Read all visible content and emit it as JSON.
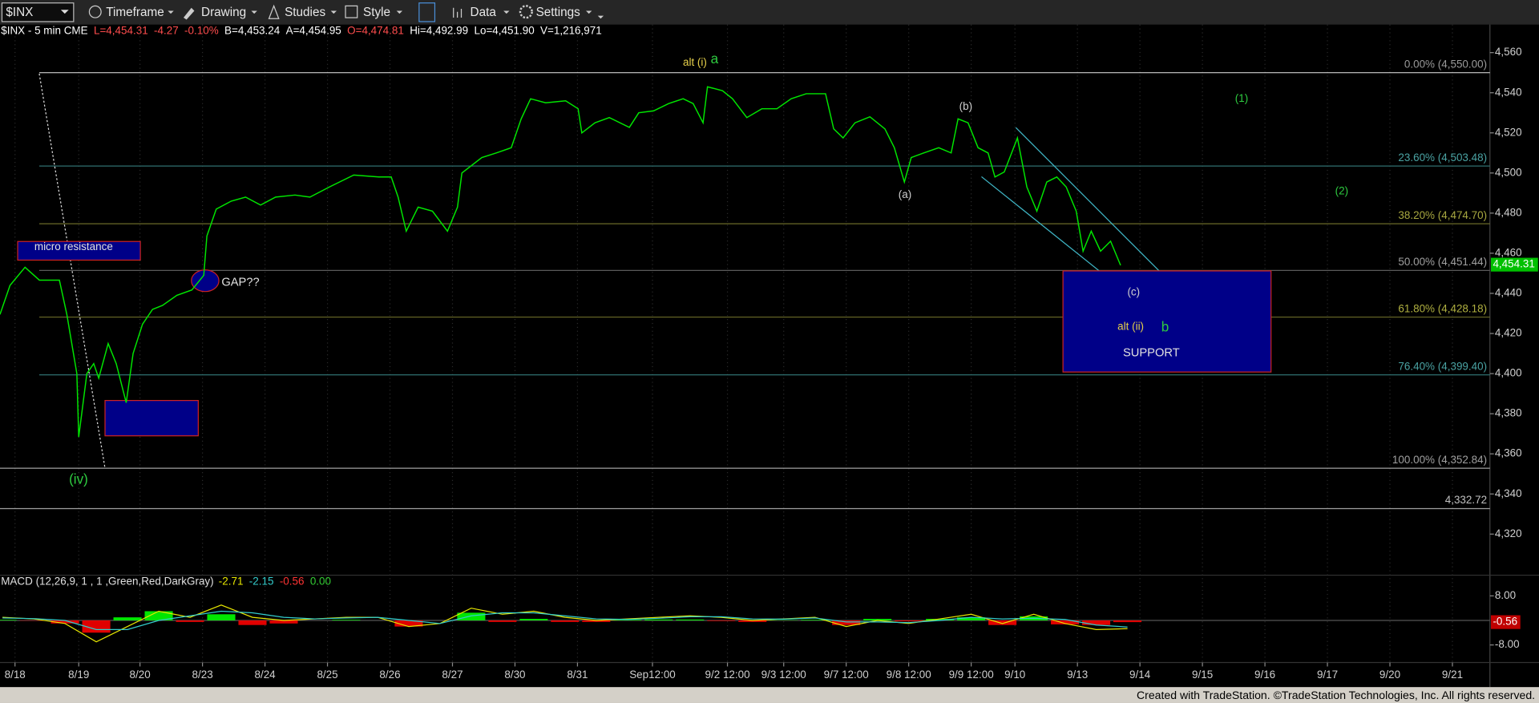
{
  "toolbar": {
    "symbol": "$INX",
    "items": [
      "Timeframe",
      "Drawing",
      "Studies",
      "Style",
      "Data",
      "Settings"
    ]
  },
  "footer": "Created with TradeStation. ©TradeStation Technologies, Inc. All rights reserved.",
  "chart_data": [
    {
      "type": "line",
      "info": [
        {
          "text": "$INX - 5 min  CME",
          "color": "#ffffff"
        },
        {
          "text": "L=4,454.31",
          "color": "#ff4d4d"
        },
        {
          "text": "-4.27",
          "color": "#ff4d4d"
        },
        {
          "text": "-0.10%",
          "color": "#ff4d4d"
        },
        {
          "text": "B=4,453.24",
          "color": "#ffffff"
        },
        {
          "text": "A=4,454.95",
          "color": "#ffffff"
        },
        {
          "text": "O=4,474.81",
          "color": "#ff4d4d"
        },
        {
          "text": "Hi=4,492.99",
          "color": "#ffffff"
        },
        {
          "text": "Lo=4,451.90",
          "color": "#ffffff"
        },
        {
          "text": "V=1,216,971",
          "color": "#ffffff"
        }
      ],
      "x": [
        -0.24,
        -0.08,
        0.16,
        0.39,
        0.71,
        0.83,
        0.99,
        1.02,
        1.15,
        1.26,
        1.34,
        1.49,
        1.62,
        1.78,
        1.89,
        2.04,
        2.2,
        2.36,
        2.59,
        2.83,
        3.02,
        3.07,
        3.22,
        3.46,
        3.69,
        3.93,
        4.17,
        4.48,
        4.72,
        5.03,
        5.42,
        5.82,
        6.02,
        6.13,
        6.26,
        6.45,
        6.68,
        6.92,
        7.08,
        7.15,
        7.47,
        7.7,
        7.94,
        8.1,
        8.25,
        8.49,
        8.81,
        9.01,
        9.07,
        9.28,
        9.51,
        9.83,
        9.98,
        10.22,
        10.46,
        10.69,
        10.85,
        11.01,
        11.08,
        11.32,
        11.48,
        11.71,
        11.95,
        12.19,
        12.42,
        12.66,
        12.97,
        13.1,
        13.25,
        13.44,
        13.68,
        13.92,
        14.07,
        14.23,
        14.34,
        14.54,
        14.78,
        14.98,
        15.09,
        15.25,
        15.41,
        15.57,
        15.68,
        15.83,
        16.04,
        16.19,
        16.35,
        16.51,
        16.67,
        16.82,
        16.98,
        17.09,
        17.22,
        17.37,
        17.53,
        17.69
      ],
      "series": [
        {
          "color": "#00e600",
          "values": [
            4429.5,
            4444,
            4453,
            4446.6,
            4446.6,
            4429.5,
            4400,
            4368.4,
            4400,
            4405,
            4397.7,
            4415,
            4405,
            4385.5,
            4410,
            4424.6,
            4432,
            4434,
            4439,
            4441.7,
            4449,
            4468.6,
            4482,
            4486,
            4488,
            4484,
            4488,
            4489,
            4488,
            4493,
            4499,
            4498,
            4498,
            4488,
            4471,
            4483,
            4481,
            4471,
            4483,
            4500,
            4507.7,
            4510,
            4512.6,
            4527,
            4537,
            4535,
            4536,
            4532,
            4520,
            4525,
            4527.6,
            4522.7,
            4530,
            4531,
            4534.6,
            4537,
            4534.6,
            4525,
            4543,
            4541,
            4537,
            4527.6,
            4532,
            4532,
            4537,
            4539.5,
            4539.5,
            4522,
            4517.5,
            4525,
            4528,
            4522,
            4512.6,
            4495.5,
            4507.7,
            4510,
            4512.6,
            4510,
            4527,
            4525,
            4512.6,
            4510,
            4498,
            4500.5,
            4517.5,
            4493,
            4481,
            4495.5,
            4498,
            4493,
            4481,
            4461,
            4471,
            4461,
            4466,
            4454
          ]
        }
      ],
      "xlim": [
        -0.24,
        23.6
      ],
      "xticks": [
        {
          "value": 0,
          "label": "8/18"
        },
        {
          "value": 1.02,
          "label": "8/19"
        },
        {
          "value": 2,
          "label": "8/20"
        },
        {
          "value": 3,
          "label": "8/23"
        },
        {
          "value": 4,
          "label": "8/24"
        },
        {
          "value": 5,
          "label": "8/25"
        },
        {
          "value": 6,
          "label": "8/26"
        },
        {
          "value": 7,
          "label": "8/27"
        },
        {
          "value": 8,
          "label": "8/30"
        },
        {
          "value": 9,
          "label": "8/31"
        },
        {
          "value": 10.2,
          "label": "Sep12:00"
        },
        {
          "value": 11.4,
          "label": "9/2 12:00"
        },
        {
          "value": 12.3,
          "label": "9/3 12:00"
        },
        {
          "value": 13.3,
          "label": "9/7 12:00"
        },
        {
          "value": 14.3,
          "label": "9/8 12:00"
        },
        {
          "value": 15.3,
          "label": "9/9 12:00"
        },
        {
          "value": 16,
          "label": "9/10"
        },
        {
          "value": 17,
          "label": "9/13"
        },
        {
          "value": 18,
          "label": "9/14"
        },
        {
          "value": 19,
          "label": "9/15"
        },
        {
          "value": 20,
          "label": "9/16"
        },
        {
          "value": 21,
          "label": "9/17"
        },
        {
          "value": 22,
          "label": "9/20"
        },
        {
          "value": 23,
          "label": "9/21"
        }
      ],
      "ylim": [
        4300,
        4574
      ],
      "yticks": [
        {
          "value": 4320,
          "label": "4,320"
        },
        {
          "value": 4340,
          "label": "4,340"
        },
        {
          "value": 4360,
          "label": "4,360"
        },
        {
          "value": 4380,
          "label": "4,380"
        },
        {
          "value": 4400,
          "label": "4,400"
        },
        {
          "value": 4420,
          "label": "4,420"
        },
        {
          "value": 4440,
          "label": "4,440"
        },
        {
          "value": 4460,
          "label": "4,460"
        },
        {
          "value": 4480,
          "label": "4,480"
        },
        {
          "value": 4500,
          "label": "4,500"
        },
        {
          "value": 4520,
          "label": "4,520"
        },
        {
          "value": 4540,
          "label": "4,540"
        },
        {
          "value": 4560,
          "label": "4,560"
        }
      ],
      "grid": true,
      "last_price": {
        "value": 4454.31,
        "label": "4,454.31",
        "color": "#00c000"
      },
      "levels": [
        {
          "value": 4550,
          "label": "0.00% (4,550.00)",
          "color": "#d0d0d0",
          "text_color": "#9a9a9a"
        },
        {
          "value": 4503.48,
          "label": "23.60% (4,503.48)",
          "color": "#2f6f6f",
          "text_color": "#4aa3a3"
        },
        {
          "value": 4474.7,
          "label": "38.20% (4,474.70)",
          "color": "#6a6a28",
          "text_color": "#a8a840"
        },
        {
          "value": 4451.44,
          "label": "50.00% (4,451.44)",
          "color": "#5a5a5a",
          "text_color": "#a0a0a0"
        },
        {
          "value": 4428.18,
          "label": "61.80% (4,428.18)",
          "color": "#6a6a28",
          "text_color": "#b0b040"
        },
        {
          "value": 4399.4,
          "label": "76.40% (4,399.40)",
          "color": "#2f6f6f",
          "text_color": "#4aa3a3"
        },
        {
          "value": 4352.84,
          "label": "100.00% (4,352.84)",
          "color": "#a0a0a0",
          "text_color": "#a0a0a0"
        },
        {
          "value": 4332.72,
          "label": "4,332.72",
          "color": "#a0a0a0",
          "text_color": "#c0c0c0"
        }
      ],
      "annotations": [
        {
          "text": "alt (i)",
          "color": "#e6d04a"
        },
        {
          "text": "a",
          "color": "#2ecc40"
        },
        {
          "text": "(b)",
          "color": "#d0d0d0"
        },
        {
          "text": "(a)",
          "color": "#d0d0d0"
        },
        {
          "text": "(1)",
          "color": "#2ecc40"
        },
        {
          "text": "(2)",
          "color": "#2ecc40"
        },
        {
          "text": "(c)",
          "color": "#d0d0d0"
        },
        {
          "text": "alt (ii)",
          "color": "#e6d04a"
        },
        {
          "text": "b",
          "color": "#2ecc40"
        },
        {
          "text": "SUPPORT",
          "color": "#e0e0e0"
        },
        {
          "text": "micro resistance",
          "color": "#e0e0e0"
        },
        {
          "text": "GAP??",
          "color": "#e0e0e0"
        },
        {
          "text": "(iv)",
          "color": "#2ecc40"
        }
      ]
    },
    {
      "type": "macd",
      "title": "MACD (12,26,9, 1 , 1 ,Green,Red,DarkGray)",
      "readout": [
        {
          "text": "-2.71",
          "color": "#e6e600"
        },
        {
          "text": "-2.15",
          "color": "#33cccc"
        },
        {
          "text": "-0.56",
          "color": "#ff3333"
        },
        {
          "text": "0.00",
          "color": "#33cc33"
        }
      ],
      "x": [
        -0.2,
        0.3,
        0.8,
        1.3,
        1.8,
        2.3,
        2.8,
        3.3,
        3.8,
        4.3,
        4.8,
        5.3,
        5.8,
        6.3,
        6.8,
        7.3,
        7.8,
        8.3,
        8.8,
        9.3,
        9.8,
        10.3,
        10.8,
        11.3,
        11.8,
        12.3,
        12.8,
        13.3,
        13.8,
        14.3,
        14.8,
        15.3,
        15.8,
        16.3,
        16.8,
        17.3,
        17.8
      ],
      "series": [
        {
          "color": "#e6e600",
          "values": [
            1,
            0.5,
            -1,
            -7,
            -2,
            3,
            1,
            5,
            1,
            0,
            0.5,
            1,
            1,
            -2,
            -1,
            4,
            2,
            3,
            1,
            0,
            0.5,
            1,
            1.5,
            1,
            0,
            0.5,
            1,
            -2,
            0,
            -1,
            0.5,
            2,
            -1,
            2,
            -1,
            -3,
            -2.71
          ]
        },
        {
          "color": "#33cccc",
          "values": [
            0.8,
            0.6,
            0,
            -3,
            -3,
            0,
            1.5,
            3,
            2.5,
            1,
            0.5,
            0.8,
            1,
            0,
            -1,
            1.5,
            2.5,
            2.5,
            1.5,
            0.5,
            0.3,
            0.7,
            1.2,
            1.2,
            0.5,
            0.4,
            0.8,
            -0.5,
            -0.5,
            -0.7,
            0,
            1,
            0.5,
            0.7,
            0.3,
            -1.5,
            -2.15
          ]
        }
      ],
      "histogram": {
        "up_color": "#00e600",
        "down_color": "#e00000",
        "values": [
          0.2,
          -0.1,
          -1,
          -4,
          1,
          3,
          -0.5,
          2,
          -1.5,
          -1,
          0,
          0.2,
          0,
          -2,
          0,
          2.5,
          -0.5,
          0.5,
          -0.5,
          -0.5,
          0.2,
          0.3,
          0.3,
          -0.2,
          -0.5,
          0.1,
          0.2,
          -1.5,
          0.5,
          -0.3,
          0.5,
          1,
          -1.5,
          1.3,
          -1.3,
          -1.5,
          -0.56
        ]
      },
      "xlim": [
        -0.24,
        23.6
      ],
      "ylim": [
        -11.5,
        10.9
      ],
      "yticks": [
        {
          "value": 8,
          "label": "8.00"
        },
        {
          "value": -8,
          "label": "-8.00"
        }
      ]
    }
  ]
}
